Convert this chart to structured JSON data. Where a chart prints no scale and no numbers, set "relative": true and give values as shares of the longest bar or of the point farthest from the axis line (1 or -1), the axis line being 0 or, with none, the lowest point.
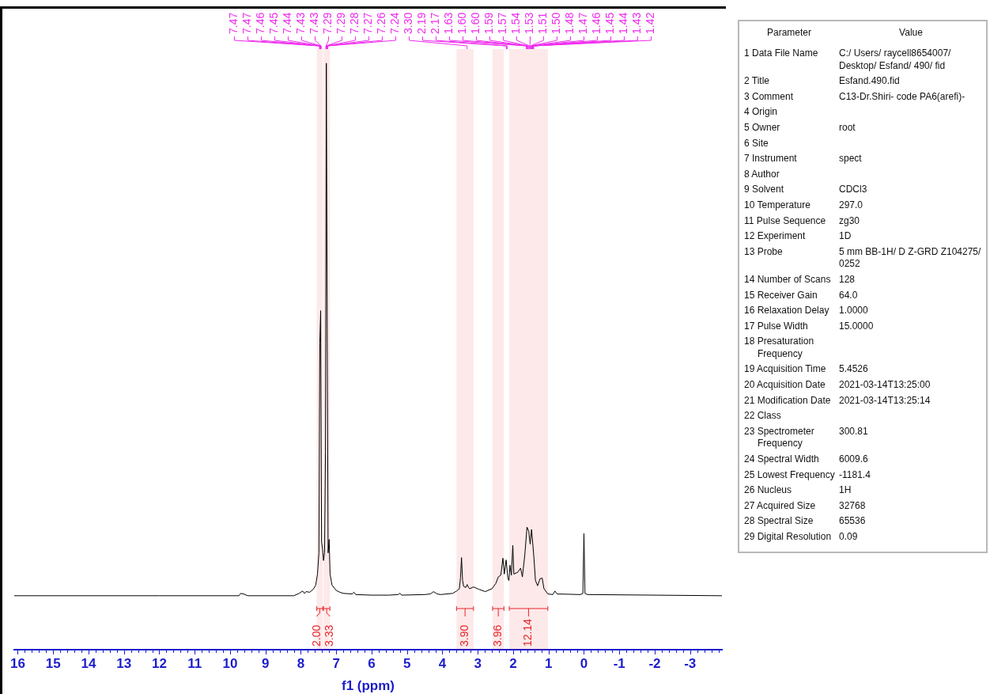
{
  "chart_data": [
    {
      "type": "line",
      "xlabel": "f1 (ppm)",
      "relative": true,
      "marker": "none",
      "xlim": [
        16.1,
        -3.9
      ],
      "xticks": [
        16,
        {
          "value": 15.8,
          "label": null
        },
        {
          "value": 15.6,
          "label": null
        },
        {
          "value": 15.4,
          "label": null
        },
        {
          "value": 15.2,
          "label": null
        },
        15,
        {
          "value": 14.8,
          "label": null
        },
        {
          "value": 14.6,
          "label": null
        },
        {
          "value": 14.4,
          "label": null
        },
        {
          "value": 14.2,
          "label": null
        },
        14,
        {
          "value": 13.8,
          "label": null
        },
        {
          "value": 13.6,
          "label": null
        },
        {
          "value": 13.4,
          "label": null
        },
        {
          "value": 13.2,
          "label": null
        },
        13,
        {
          "value": 12.8,
          "label": null
        },
        {
          "value": 12.6,
          "label": null
        },
        {
          "value": 12.4,
          "label": null
        },
        {
          "value": 12.2,
          "label": null
        },
        12,
        {
          "value": 11.8,
          "label": null
        },
        {
          "value": 11.6,
          "label": null
        },
        {
          "value": 11.4,
          "label": null
        },
        {
          "value": 11.2,
          "label": null
        },
        11,
        {
          "value": 10.8,
          "label": null
        },
        {
          "value": 10.6,
          "label": null
        },
        {
          "value": 10.4,
          "label": null
        },
        {
          "value": 10.2,
          "label": null
        },
        10,
        {
          "value": 9.8,
          "label": null
        },
        {
          "value": 9.6,
          "label": null
        },
        {
          "value": 9.4,
          "label": null
        },
        {
          "value": 9.2,
          "label": null
        },
        9,
        {
          "value": 8.8,
          "label": null
        },
        {
          "value": 8.6,
          "label": null
        },
        {
          "value": 8.4,
          "label": null
        },
        {
          "value": 8.2,
          "label": null
        },
        8,
        {
          "value": 7.8,
          "label": null
        },
        {
          "value": 7.6,
          "label": null
        },
        {
          "value": 7.4,
          "label": null
        },
        {
          "value": 7.2,
          "label": null
        },
        7,
        {
          "value": 6.8,
          "label": null
        },
        {
          "value": 6.6,
          "label": null
        },
        {
          "value": 6.4,
          "label": null
        },
        {
          "value": 6.2,
          "label": null
        },
        6,
        {
          "value": 5.8,
          "label": null
        },
        {
          "value": 5.6,
          "label": null
        },
        {
          "value": 5.4,
          "label": null
        },
        {
          "value": 5.2,
          "label": null
        },
        5,
        {
          "value": 4.8,
          "label": null
        },
        {
          "value": 4.6,
          "label": null
        },
        {
          "value": 4.4,
          "label": null
        },
        {
          "value": 4.2,
          "label": null
        },
        4,
        {
          "value": 3.8,
          "label": null
        },
        {
          "value": 3.6,
          "label": null
        },
        {
          "value": 3.4,
          "label": null
        },
        {
          "value": 3.2,
          "label": null
        },
        3,
        {
          "value": 2.8,
          "label": null
        },
        {
          "value": 2.6,
          "label": null
        },
        {
          "value": 2.4,
          "label": null
        },
        {
          "value": 2.2,
          "label": null
        },
        2,
        {
          "value": 1.8,
          "label": null
        },
        {
          "value": 1.6,
          "label": null
        },
        {
          "value": 1.4,
          "label": null
        },
        {
          "value": 1.2,
          "label": null
        },
        1,
        {
          "value": 0.8,
          "label": null
        },
        {
          "value": 0.6,
          "label": null
        },
        {
          "value": 0.4,
          "label": null
        },
        {
          "value": 0.2,
          "label": null
        },
        0,
        {
          "value": -0.2,
          "label": null
        },
        {
          "value": -0.4,
          "label": null
        },
        {
          "value": -0.6,
          "label": null
        },
        {
          "value": -0.8,
          "label": null
        },
        -1,
        {
          "value": -1.2,
          "label": null
        },
        {
          "value": -1.4,
          "label": null
        },
        {
          "value": -1.6,
          "label": null
        },
        {
          "value": -1.8,
          "label": null
        },
        -2,
        {
          "value": -2.2,
          "label": null
        },
        {
          "value": -2.4,
          "label": null
        },
        {
          "value": -2.6,
          "label": null
        },
        {
          "value": -2.8,
          "label": null
        },
        -3,
        {
          "value": -3.2,
          "label": null
        },
        {
          "value": -3.4,
          "label": null
        },
        {
          "value": -3.6,
          "label": null
        },
        {
          "value": -3.8,
          "label": null
        }
      ],
      "x": [
        16.1,
        12.0,
        10.0,
        9.75,
        9.7,
        9.62,
        9.5,
        8.2,
        8.05,
        7.95,
        7.9,
        7.85,
        7.75,
        7.65,
        7.58,
        7.53,
        7.49,
        7.465,
        7.44,
        7.415,
        7.39,
        7.36,
        7.33,
        7.305,
        7.28,
        7.255,
        7.23,
        7.2,
        7.175,
        7.12,
        7.0,
        6.9,
        6.8,
        6.55,
        6.5,
        6.45,
        6.0,
        5.5,
        5.25,
        5.2,
        5.15,
        4.5,
        4.34,
        4.25,
        4.15,
        4.05,
        3.71,
        3.6,
        3.52,
        3.49,
        3.46,
        3.43,
        3.4,
        3.34,
        3.3,
        3.26,
        3.23,
        3.12,
        2.97,
        2.79,
        2.6,
        2.49,
        2.42,
        2.35,
        2.29,
        2.25,
        2.2,
        2.15,
        2.12,
        2.09,
        2.05,
        2.01,
        1.98,
        1.87,
        1.79,
        1.74,
        1.67,
        1.61,
        1.56,
        1.52,
        1.48,
        1.42,
        1.37,
        1.31,
        1.24,
        1.18,
        1.13,
        1.02,
        0.88,
        0.82,
        0.76,
        0.1,
        0.03,
        0.0,
        -0.03,
        -0.1,
        -3.9
      ],
      "series": [
        {
          "color": "#000000",
          "values": [
            0.092,
            0.092,
            0.092,
            0.092,
            0.096,
            0.095,
            0.092,
            0.092,
            0.096,
            0.1,
            0.096,
            0.099,
            0.098,
            0.103,
            0.11,
            0.129,
            0.165,
            0.523,
            0.578,
            0.183,
            0.174,
            0.152,
            0.165,
            0.337,
            1.0,
            0.544,
            0.165,
            0.188,
            0.129,
            0.11,
            0.101,
            0.098,
            0.096,
            0.095,
            0.098,
            0.094,
            0.093,
            0.093,
            0.094,
            0.096,
            0.093,
            0.094,
            0.095,
            0.099,
            0.095,
            0.094,
            0.096,
            0.1,
            0.104,
            0.122,
            0.157,
            0.118,
            0.108,
            0.106,
            0.111,
            0.106,
            0.104,
            0.107,
            0.103,
            0.099,
            0.104,
            0.113,
            0.124,
            0.127,
            0.156,
            0.129,
            0.153,
            0.122,
            0.118,
            0.144,
            0.127,
            0.178,
            0.129,
            0.132,
            0.139,
            0.124,
            0.162,
            0.209,
            0.202,
            0.18,
            0.205,
            0.162,
            0.118,
            0.109,
            0.121,
            0.122,
            0.104,
            0.095,
            0.094,
            0.1,
            0.095,
            0.094,
            0.096,
            0.198,
            0.096,
            0.094,
            0.092
          ]
        }
      ],
      "annotations": [
        {
          "text": "7.47",
          "x": 7.47
        },
        {
          "text": "7.47",
          "x": 7.47
        },
        {
          "text": "7.46",
          "x": 7.46
        },
        {
          "text": "7.45",
          "x": 7.45
        },
        {
          "text": "7.44",
          "x": 7.44
        },
        {
          "text": "7.43",
          "x": 7.43
        },
        {
          "text": "7.43",
          "x": 7.43
        },
        {
          "text": "7.29",
          "x": 7.29
        },
        {
          "text": "7.29",
          "x": 7.29
        },
        {
          "text": "7.28",
          "x": 7.28
        },
        {
          "text": "7.27",
          "x": 7.27
        },
        {
          "text": "7.26",
          "x": 7.26
        },
        {
          "text": "7.24",
          "x": 7.24
        },
        {
          "text": "3.30",
          "x": 3.3
        },
        {
          "text": "2.19",
          "x": 2.19
        },
        {
          "text": "2.17",
          "x": 2.17
        },
        {
          "text": "1.63",
          "x": 1.63
        },
        {
          "text": "1.60",
          "x": 1.6
        },
        {
          "text": "1.60",
          "x": 1.6
        },
        {
          "text": "1.59",
          "x": 1.59
        },
        {
          "text": "1.57",
          "x": 1.57
        },
        {
          "text": "1.54",
          "x": 1.54
        },
        {
          "text": "1.53",
          "x": 1.53
        },
        {
          "text": "1.51",
          "x": 1.51
        },
        {
          "text": "1.50",
          "x": 1.5
        },
        {
          "text": "1.48",
          "x": 1.48
        },
        {
          "text": "1.47",
          "x": 1.47
        },
        {
          "text": "1.46",
          "x": 1.46
        },
        {
          "text": "1.45",
          "x": 1.45
        },
        {
          "text": "1.44",
          "x": 1.44
        },
        {
          "text": "1.43",
          "x": 1.43
        },
        {
          "text": "1.42",
          "x": 1.42
        }
      ],
      "bands": [
        {
          "axis": "x",
          "from": 7.55,
          "to": 7.38,
          "label": "2.00",
          "color": "#e8262a"
        },
        {
          "axis": "x",
          "from": 7.36,
          "to": 7.18,
          "label": "3.33",
          "color": "#e8262a"
        },
        {
          "axis": "x",
          "from": 3.6,
          "to": 3.12,
          "label": "3.90",
          "color": "#e8262a"
        },
        {
          "axis": "x",
          "from": 2.58,
          "to": 2.26,
          "label": "3.96",
          "color": "#e8262a"
        },
        {
          "axis": "x",
          "from": 2.11,
          "to": 1.02,
          "label": "12.14",
          "color": "#e8262a"
        }
      ]
    },
    {
      "type": "other",
      "annotations": [
        "Parameter",
        "Value"
      ],
      "categories": [
        "1 Data File Name",
        "2 Title",
        "3 Comment",
        "4 Origin",
        "5 Owner",
        "6 Site",
        "7 Instrument",
        "8 Author",
        "9 Solvent",
        "10 Temperature",
        "11 Pulse Sequence",
        "12 Experiment",
        "13 Probe",
        "14 Number of Scans",
        "15 Receiver Gain",
        "16 Relaxation Delay",
        "17 Pulse Width",
        "18 Presaturation Frequency",
        "19 Acquisition Time",
        "20 Acquisition Date",
        "21 Modification Date",
        "22 Class",
        "23 Spectrometer Frequency",
        "24 Spectral Width",
        "25 Lowest Frequency",
        "26 Nucleus",
        "27 Acquired Size",
        "28 Spectral Size",
        "29 Digital Resolution"
      ],
      "value_labels": [
        "C:/ Users/ raycell8654007/ Desktop/ Esfand/ 490/ fid",
        "Esfand.490.fid",
        "C13-Dr.Shiri- code PA6(arefi)-",
        null,
        "root",
        null,
        "spect",
        null,
        "CDCl3",
        "297.0",
        "zg30",
        "1D",
        "5 mm BB-1H/ D Z-GRD Z104275/ 0252",
        "128",
        "64.0",
        "1.0000",
        "15.0000",
        null,
        "5.4526",
        "2021-03-14T13:25:00",
        "2021-03-14T13:25:14",
        null,
        "300.81",
        "6009.6",
        "-1181.4",
        "1H",
        "32768",
        "65536",
        "0.09"
      ]
    }
  ]
}
